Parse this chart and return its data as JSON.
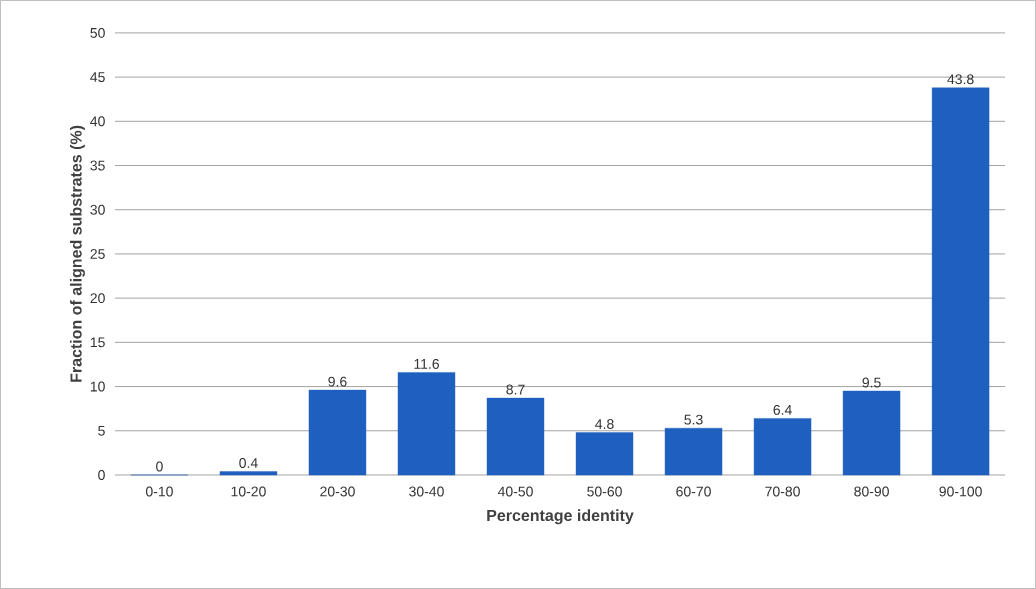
{
  "chart_data": {
    "type": "bar",
    "categories": [
      "0-10",
      "10-20",
      "20-30",
      "30-40",
      "40-50",
      "50-60",
      "60-70",
      "70-80",
      "80-90",
      "90-100"
    ],
    "values": [
      0,
      0.4,
      9.6,
      11.6,
      8.7,
      4.8,
      5.3,
      6.4,
      9.5,
      43.8
    ],
    "color": "#1f5fbf",
    "xlabel": "Percentage identity",
    "ylabel": "Fraction of aligned substrates (%)",
    "ylim": [
      0,
      50
    ],
    "yticks": [
      0,
      5,
      10,
      15,
      20,
      25,
      30,
      35,
      40,
      45,
      50
    ],
    "grid": "y",
    "data_labels": true
  }
}
